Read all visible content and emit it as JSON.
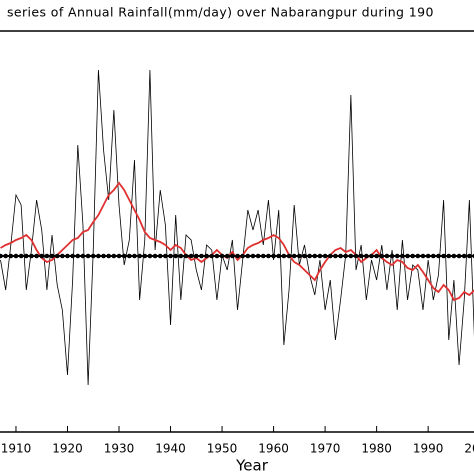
{
  "chart_data": {
    "type": "line",
    "title": "series of Annual Rainfall(mm/day) over Nabarangpur during 190",
    "xlabel": "Year",
    "x": [
      1907,
      1908,
      1909,
      1910,
      1911,
      1912,
      1913,
      1914,
      1915,
      1916,
      1917,
      1918,
      1919,
      1920,
      1921,
      1922,
      1923,
      1924,
      1925,
      1926,
      1927,
      1928,
      1929,
      1930,
      1931,
      1932,
      1933,
      1934,
      1935,
      1936,
      1937,
      1938,
      1939,
      1940,
      1941,
      1942,
      1943,
      1944,
      1945,
      1946,
      1947,
      1948,
      1949,
      1950,
      1951,
      1952,
      1953,
      1954,
      1955,
      1956,
      1957,
      1958,
      1959,
      1960,
      1961,
      1962,
      1963,
      1964,
      1965,
      1966,
      1967,
      1968,
      1969,
      1970,
      1971,
      1972,
      1973,
      1974,
      1975,
      1976,
      1977,
      1978,
      1979,
      1980,
      1981,
      1982,
      1983,
      1984,
      1985,
      1986,
      1987,
      1988,
      1989,
      1990,
      1991,
      1992,
      1993,
      1994,
      1995,
      1996,
      1997,
      1998,
      1999,
      2000,
      2001,
      2002,
      2003
    ],
    "series": [
      {
        "color": "#000000",
        "values": [
          -0.08,
          -0.68,
          0.22,
          1.22,
          1.02,
          -0.68,
          0.12,
          1.12,
          0.52,
          -0.68,
          0.42,
          -0.58,
          -1.08,
          -2.38,
          -0.48,
          2.22,
          0.62,
          -2.58,
          0.12,
          3.72,
          2.12,
          1.12,
          2.92,
          1.02,
          -0.18,
          0.32,
          1.92,
          -0.88,
          0.32,
          3.72,
          0.12,
          1.32,
          0.62,
          -1.38,
          0.82,
          -0.88,
          0.42,
          0.32,
          -0.28,
          -0.68,
          0.22,
          0.12,
          -0.88,
          0.02,
          -0.28,
          0.32,
          -1.08,
          -0.08,
          0.92,
          0.52,
          0.92,
          0.22,
          1.12,
          -0.08,
          0.92,
          -1.78,
          -0.68,
          1.02,
          -0.18,
          0.22,
          -0.38,
          -0.78,
          -0.08,
          -1.08,
          -0.48,
          -1.68,
          -0.88,
          0.02,
          3.22,
          -0.28,
          0.22,
          -0.88,
          -0.08,
          -0.48,
          0.22,
          -0.68,
          0.12,
          -1.08,
          0.32,
          -0.88,
          -0.18,
          -0.28,
          -1.08,
          -0.08,
          -0.88,
          -0.38,
          1.12,
          -1.68,
          -0.48,
          -2.18,
          -0.88,
          1.12,
          -1.68,
          -0.98,
          0.92,
          0.02,
          -1.28
        ]
      },
      {
        "color": "#e03030",
        "values": [
          0.16,
          0.22,
          0.26,
          0.32,
          0.36,
          0.42,
          0.32,
          0.12,
          -0.04,
          -0.12,
          -0.08,
          0.02,
          0.12,
          0.22,
          0.32,
          0.36,
          0.48,
          0.52,
          0.68,
          0.82,
          1.02,
          1.22,
          1.32,
          1.46,
          1.32,
          1.12,
          0.92,
          0.72,
          0.48,
          0.36,
          0.32,
          0.28,
          0.22,
          0.12,
          0.22,
          0.16,
          0.02,
          -0.08,
          -0.04,
          -0.12,
          -0.04,
          0.02,
          0.12,
          0.02,
          -0.04,
          0.08,
          -0.08,
          0.02,
          0.16,
          0.22,
          0.26,
          0.32,
          0.36,
          0.42,
          0.36,
          0.22,
          0.02,
          -0.12,
          -0.18,
          -0.28,
          -0.38,
          -0.48,
          -0.28,
          -0.12,
          0.02,
          0.12,
          0.16,
          0.08,
          0.12,
          0.02,
          -0.12,
          -0.04,
          0.02,
          0.12,
          -0.04,
          -0.12,
          -0.18,
          -0.08,
          -0.12,
          -0.24,
          -0.28,
          -0.18,
          -0.32,
          -0.48,
          -0.64,
          -0.72,
          -0.58,
          -0.68,
          -0.88,
          -0.84,
          -0.72,
          -0.78,
          -0.68,
          -0.88,
          -0.78,
          -0.72,
          -0.78
        ]
      }
    ],
    "mean_line": 0,
    "xlim": [
      1906.9,
      1998.9
    ],
    "ylim": [
      -3.52,
      4.5
    ],
    "xticks": [
      1910,
      1920,
      1930,
      1940,
      1950,
      1960,
      1970,
      1980,
      1990,
      2000
    ]
  }
}
